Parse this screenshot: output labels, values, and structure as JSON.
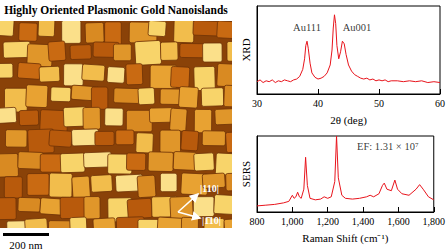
{
  "image": {
    "title": "Highly Oriented Plasmonic Gold Nanoislands",
    "scale_bar": "200 nm",
    "directions": [
      "|110|",
      "|1̄10|"
    ]
  },
  "chart_data": [
    {
      "type": "line",
      "y_label": "XRD",
      "x_label": "2θ (deg)",
      "color": "#e8141c",
      "x": [
        30,
        30.5,
        31,
        31.5,
        32,
        32.5,
        33,
        33.5,
        34,
        34.5,
        35,
        35.5,
        36,
        36.5,
        37,
        37.5,
        37.8,
        38.0,
        38.2,
        38.4,
        38.7,
        39,
        39.5,
        40,
        40.5,
        41,
        41.5,
        42,
        42.3,
        42.5,
        42.7,
        42.9,
        43.1,
        43.4,
        43.7,
        44.0,
        44.3,
        44.6,
        45,
        45.5,
        46,
        46.5,
        47,
        47.5,
        48,
        48.5,
        49,
        49.5,
        50,
        50.5,
        51,
        51.5,
        52,
        53,
        54,
        55,
        56,
        57,
        58,
        59,
        60
      ],
      "values": [
        14,
        16,
        13,
        15,
        14,
        16,
        13,
        15,
        14,
        16,
        15,
        14,
        16,
        17,
        20,
        28,
        40,
        55,
        60,
        52,
        35,
        24,
        19,
        17,
        18,
        20,
        24,
        33,
        50,
        75,
        90,
        80,
        55,
        40,
        48,
        60,
        57,
        45,
        33,
        26,
        22,
        20,
        18,
        17,
        18,
        16,
        17,
        15,
        16,
        15,
        16,
        14,
        15,
        15,
        14,
        15,
        14,
        15,
        13,
        14,
        13
      ],
      "xlim": [
        30,
        60
      ],
      "xticks": [
        30,
        40,
        50,
        60
      ],
      "ylim": [
        0,
        100
      ],
      "annotations": [
        {
          "text": "Au111",
          "x": 38.2,
          "y": 76
        },
        {
          "text": "Au001",
          "x": 46.4,
          "y": 76
        }
      ],
      "grid": false,
      "tick_labels": "x"
    },
    {
      "type": "line",
      "y_label": "SERS",
      "x_label": "Raman Shift (cm⁻¹)",
      "color": "#e8141c",
      "x": [
        800,
        850,
        900,
        950,
        980,
        1000,
        1010,
        1020,
        1030,
        1040,
        1050,
        1065,
        1075,
        1085,
        1100,
        1130,
        1160,
        1180,
        1200,
        1220,
        1240,
        1250,
        1260,
        1280,
        1300,
        1340,
        1380,
        1420,
        1440,
        1460,
        1490,
        1510,
        1520,
        1535,
        1560,
        1580,
        1595,
        1620,
        1660,
        1700,
        1720,
        1740,
        1770,
        1800
      ],
      "values": [
        8,
        9,
        10,
        12,
        14,
        22,
        18,
        20,
        26,
        20,
        18,
        30,
        72,
        35,
        18,
        16,
        17,
        20,
        18,
        20,
        40,
        100,
        45,
        22,
        18,
        17,
        18,
        20,
        22,
        20,
        24,
        35,
        38,
        30,
        28,
        42,
        30,
        24,
        22,
        30,
        36,
        30,
        20,
        16
      ],
      "xlim": [
        800,
        1800
      ],
      "xticks": [
        800,
        1000,
        1200,
        1400,
        1600,
        1800
      ],
      "ylim": [
        0,
        100
      ],
      "annotations": [
        {
          "text": "EF: 1.31 × 10⁷",
          "x": 1540,
          "y": 86
        }
      ],
      "grid": false,
      "tick_labels": "x"
    }
  ]
}
